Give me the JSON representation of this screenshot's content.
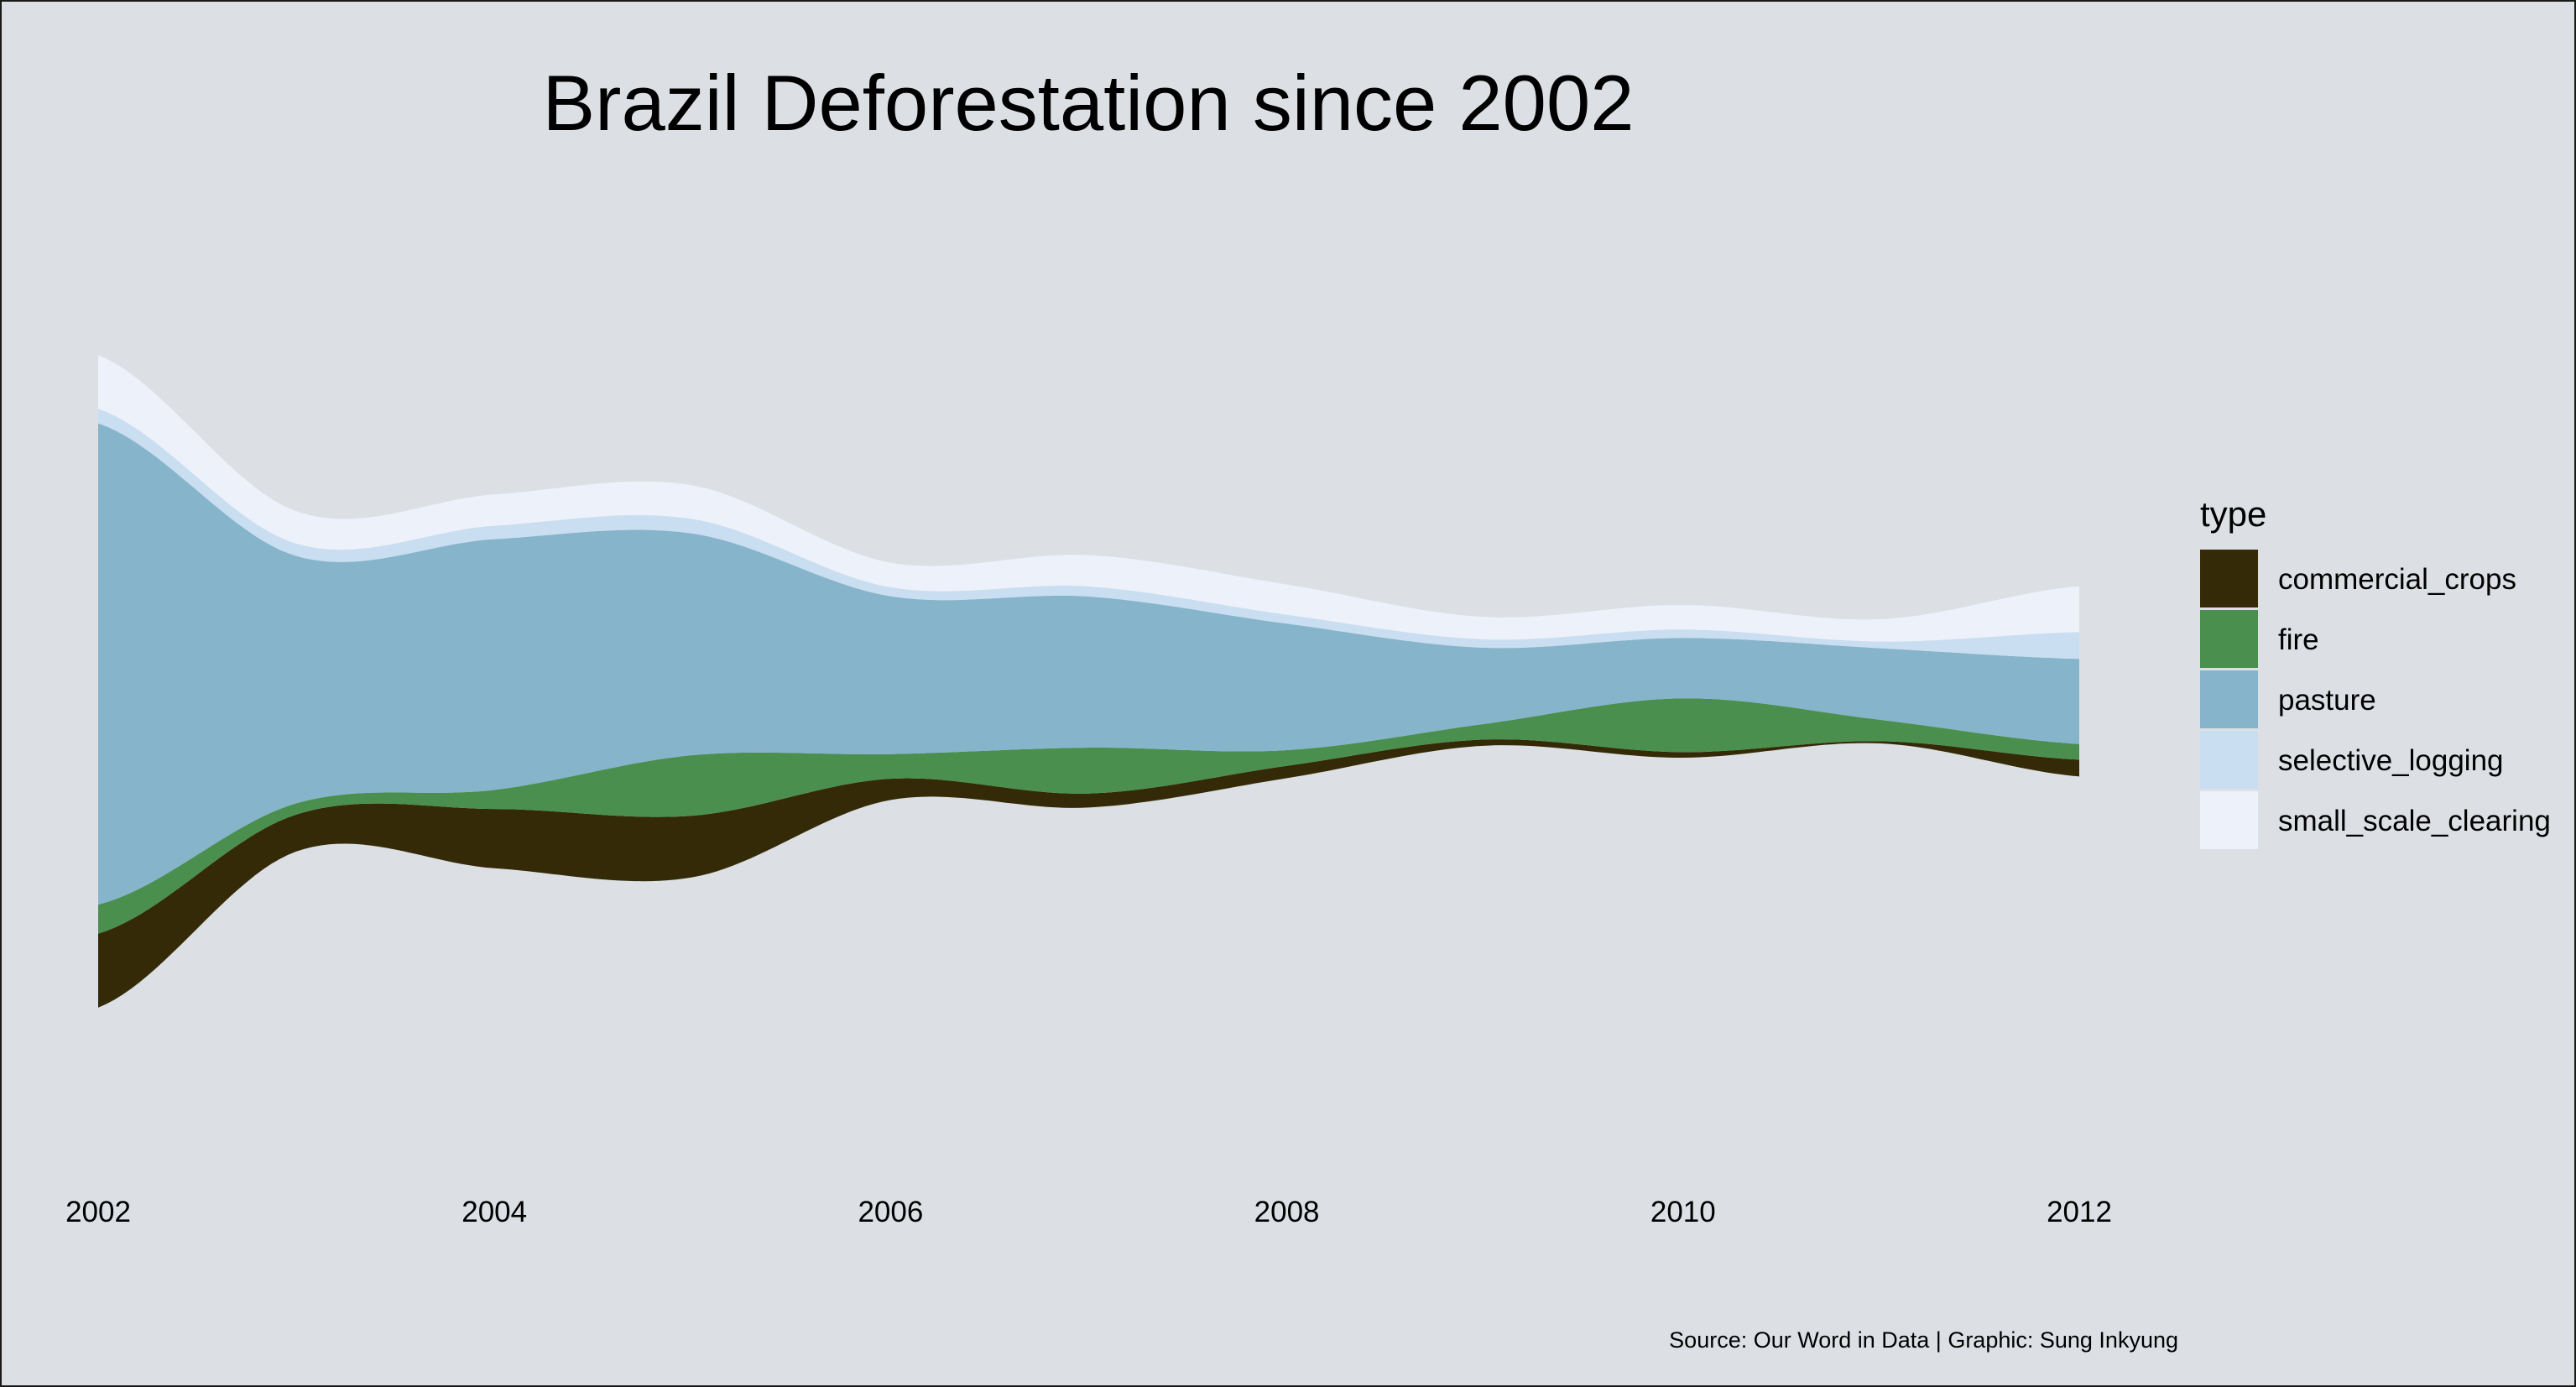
{
  "chart_data": {
    "type": "area",
    "subtype": "streamgraph",
    "title": "Brazil Deforestation since 2002",
    "xlabel": "",
    "ylabel": "",
    "x": [
      2002,
      2003,
      2004,
      2005,
      2006,
      2007,
      2008,
      2009,
      2010,
      2011,
      2012
    ],
    "xticks": [
      "2002",
      "2004",
      "2006",
      "2008",
      "2010",
      "2012"
    ],
    "series": [
      {
        "name": "commercial_crops",
        "color": "#352a08",
        "values": [
          132,
          66,
          106,
          110,
          38,
          25,
          22,
          11,
          10,
          4,
          30
        ]
      },
      {
        "name": "fire",
        "color": "#4a8f4e",
        "values": [
          52,
          20,
          34,
          108,
          44,
          82,
          28,
          28,
          96,
          38,
          28
        ]
      },
      {
        "name": "pasture",
        "color": "#86b4cb",
        "values": [
          860,
          442,
          448,
          396,
          282,
          270,
          226,
          136,
          108,
          128,
          152
        ]
      },
      {
        "name": "selective_logging",
        "color": "#c9def0",
        "values": [
          26,
          22,
          24,
          26,
          16,
          18,
          16,
          15,
          15,
          12,
          48
        ]
      },
      {
        "name": "small_scale_clearing",
        "color": "#edf1fa",
        "values": [
          96,
          58,
          56,
          60,
          44,
          56,
          54,
          40,
          44,
          40,
          82
        ]
      }
    ],
    "legend": {
      "title": "type",
      "position": "right"
    },
    "axes": {
      "y_visible": false,
      "grid": false
    },
    "caption": "Source: Our Word in Data | Graphic: Sung Inkyung"
  }
}
